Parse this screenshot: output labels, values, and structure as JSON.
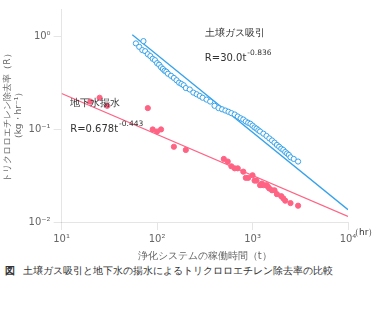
{
  "chart_data": {
    "type": "scatter",
    "title": "",
    "xlabel": "浄化システムの稼働時間（t）",
    "ylabel": [
      "トリクロロエチレン除去率（R）",
      "（kg・hr⁻¹）"
    ],
    "annotations": [
      "（hr）"
    ],
    "caption_num": "図",
    "caption": "土壌ガス吸引と地下水の揚水によるトリクロロエチレン除去率の比較",
    "log": true,
    "grid": false,
    "xlim": [
      10,
      10000
    ],
    "ylim": [
      0.01,
      2
    ],
    "xticks": [
      {
        "value": 10,
        "label": "10¹"
      },
      {
        "value": 100,
        "label": "10²"
      },
      {
        "value": 1000,
        "label": "10³"
      },
      {
        "value": 10000,
        "label": "10⁴"
      }
    ],
    "yticks": [
      {
        "value": 0.01,
        "label": "10⁻²"
      },
      {
        "value": 0.1,
        "label": "10⁻¹"
      },
      {
        "value": 1,
        "label": "10⁰"
      }
    ],
    "series": [
      {
        "name": "土壌ガス吸引",
        "marker": "circle_open",
        "x": [
          60,
          65,
          70,
          72,
          75,
          80,
          85,
          90,
          95,
          100,
          105,
          110,
          115,
          120,
          125,
          130,
          140,
          150,
          160,
          170,
          180,
          190,
          200,
          220,
          240,
          260,
          280,
          300,
          330,
          360,
          400,
          440,
          480,
          520,
          560,
          600,
          650,
          700,
          750,
          800,
          850,
          900,
          950,
          1000,
          1050,
          1100,
          1150,
          1200,
          1300,
          1400,
          1500,
          1600,
          1700,
          1800,
          1900,
          2000,
          2100,
          2200,
          2300,
          2400,
          2500,
          2700,
          3000
        ],
        "values": [
          0.85,
          0.78,
          0.72,
          0.9,
          0.7,
          0.65,
          0.62,
          0.58,
          0.56,
          0.52,
          0.5,
          0.47,
          0.45,
          0.43,
          0.42,
          0.4,
          0.38,
          0.36,
          0.34,
          0.32,
          0.31,
          0.3,
          0.28,
          0.27,
          0.25,
          0.24,
          0.23,
          0.22,
          0.21,
          0.2,
          0.18,
          0.17,
          0.165,
          0.16,
          0.155,
          0.15,
          0.145,
          0.138,
          0.132,
          0.128,
          0.122,
          0.118,
          0.115,
          0.11,
          0.105,
          0.102,
          0.098,
          0.095,
          0.09,
          0.085,
          0.08,
          0.076,
          0.072,
          0.068,
          0.065,
          0.062,
          0.06,
          0.057,
          0.055,
          0.053,
          0.05,
          0.048,
          0.045
        ],
        "trend": {
          "line_style": "solid",
          "equation": "R=30.0t",
          "exponent": "-0.836",
          "x": [
            55,
            10000
          ],
          "values": [
            1.0524,
            0.013587
          ]
        }
      },
      {
        "name": "地下水揚水",
        "marker": "circle",
        "x": [
          20,
          25,
          30,
          80,
          90,
          100,
          110,
          150,
          200,
          500,
          550,
          600,
          650,
          700,
          800,
          850,
          900,
          1000,
          1050,
          1100,
          1200,
          1250,
          1300,
          1400,
          1450,
          1500,
          1600,
          1700,
          1800,
          2000,
          2100,
          2200,
          2500,
          3000
        ],
        "values": [
          0.2,
          0.22,
          0.18,
          0.17,
          0.1,
          0.095,
          0.1,
          0.065,
          0.06,
          0.048,
          0.045,
          0.04,
          0.038,
          0.038,
          0.035,
          0.03,
          0.03,
          0.032,
          0.028,
          0.028,
          0.025,
          0.026,
          0.025,
          0.025,
          0.024,
          0.023,
          0.022,
          0.022,
          0.02,
          0.019,
          0.018,
          0.017,
          0.016,
          0.015
        ],
        "trend": {
          "line_style": "solid",
          "equation": "R=0.678t",
          "exponent": "-0.443",
          "x": [
            10,
            10000
          ],
          "values": [
            0.24447,
            0.011461
          ]
        }
      }
    ]
  }
}
